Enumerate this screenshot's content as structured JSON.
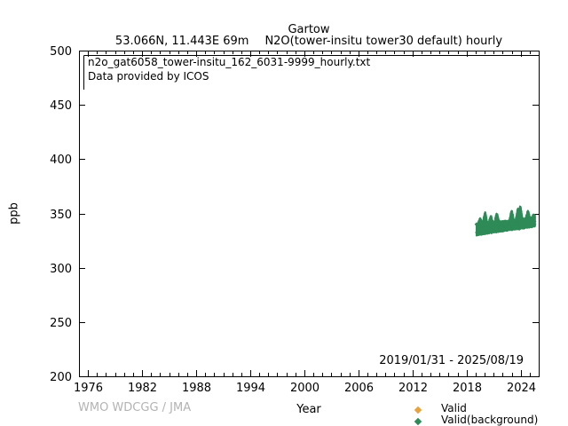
{
  "chart_data": {
    "type": "scatter",
    "title": "Gartow",
    "station": "53.066N, 11.443E 69m",
    "parameter": "N2O(tower-insitu tower30 default) hourly",
    "xlabel": "Year",
    "ylabel": "ppb",
    "xlim": [
      1975,
      2026
    ],
    "ylim": [
      200,
      500
    ],
    "xticks": [
      1976,
      1982,
      1988,
      1994,
      2000,
      2006,
      2012,
      2018,
      2024
    ],
    "x_minor_step": 1,
    "yticks": [
      200,
      250,
      300,
      350,
      400,
      450,
      500
    ],
    "grid": false,
    "annotations": {
      "file": "n2o_gat6058_tower-insitu_162_6031-9999_hourly.txt",
      "provider": "Data provided by ICOS",
      "period": "2019/01/31 - 2025/08/19"
    },
    "legend": {
      "position": "bottom-right-outside",
      "items": [
        {
          "label": "Valid",
          "color": "#e8a33d",
          "marker": "diamond"
        },
        {
          "label": "Valid(background)",
          "color": "#2e8b57",
          "marker": "diamond"
        }
      ]
    },
    "series": [
      {
        "name": "Valid",
        "color": "#e8a33d",
        "marker": "diamond",
        "points": []
      },
      {
        "name": "Valid(background)",
        "color": "#2e8b57",
        "marker": "diamond",
        "x_start": 2019.08,
        "x_end": 2025.63,
        "band_bottom": [
          [
            2019.08,
            330.0
          ],
          [
            2021.0,
            332.5
          ],
          [
            2023.0,
            335.0
          ],
          [
            2025.63,
            338.0
          ]
        ],
        "band_top": [
          [
            2019.08,
            340.0
          ],
          [
            2020.5,
            341.5
          ],
          [
            2022.0,
            342.5
          ],
          [
            2024.0,
            344.5
          ],
          [
            2025.63,
            346.5
          ]
        ],
        "spikes": [
          [
            2019.5,
            345.0
          ],
          [
            2020.05,
            350.5
          ],
          [
            2020.7,
            347.0
          ],
          [
            2021.35,
            349.5
          ],
          [
            2023.0,
            352.0
          ],
          [
            2023.7,
            354.0
          ],
          [
            2023.95,
            356.0
          ],
          [
            2024.8,
            352.0
          ],
          [
            2025.45,
            348.5
          ]
        ]
      }
    ],
    "footer": "WMO WDCGG / JMA"
  }
}
